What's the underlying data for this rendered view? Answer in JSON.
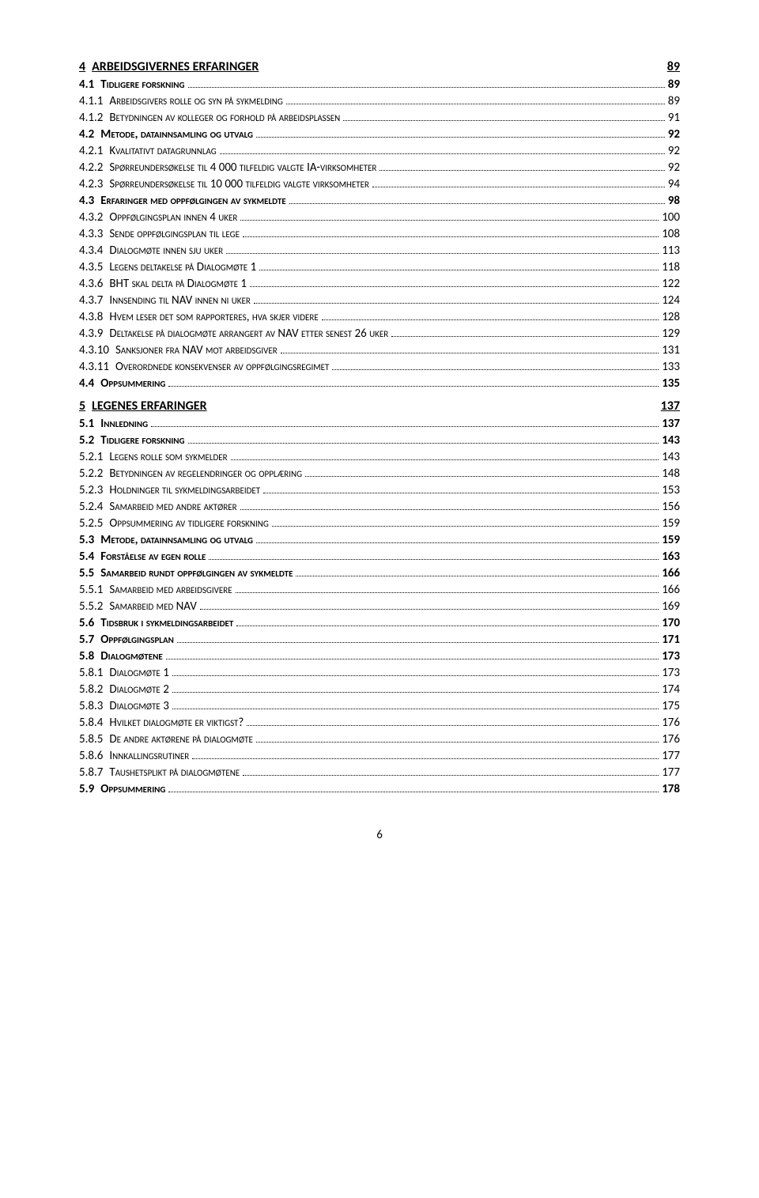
{
  "entries": [
    {
      "level": 1,
      "num": "4",
      "text": "ARBEIDSGIVERNES ERFARINGER",
      "page": "89"
    },
    {
      "level": 2,
      "num": "4.1",
      "text": "Tidligere forskning",
      "page": "89"
    },
    {
      "level": 3,
      "num": "4.1.1",
      "text": "Arbeidsgivers rolle og syn på sykmelding",
      "page": "89"
    },
    {
      "level": 3,
      "num": "4.1.2",
      "text": "Betydningen av kolleger og forhold på arbeidsplassen",
      "page": "91"
    },
    {
      "level": 2,
      "num": "4.2",
      "text": "Metode, datainnsamling og utvalg",
      "page": "92"
    },
    {
      "level": 3,
      "num": "4.2.1",
      "text": "Kvalitativt datagrunnlag",
      "page": "92"
    },
    {
      "level": 3,
      "num": "4.2.2",
      "text": "Spørreundersøkelse til 4 000 tilfeldig valgte IA-virksomheter",
      "page": "92"
    },
    {
      "level": 3,
      "num": "4.2.3",
      "text": "Spørreundersøkelse til 10 000 tilfeldig valgte virksomheter",
      "page": "94"
    },
    {
      "level": 2,
      "num": "4.3",
      "text": "Erfaringer med oppfølgingen av sykmeldte",
      "page": "98"
    },
    {
      "level": 3,
      "num": "4.3.2",
      "text": "Oppfølgingsplan innen 4 uker",
      "page": "100"
    },
    {
      "level": 3,
      "num": "4.3.3",
      "text": "Sende oppfølgingsplan til lege",
      "page": "108"
    },
    {
      "level": 3,
      "num": "4.3.4",
      "text": "Dialogmøte innen sju uker",
      "page": "113"
    },
    {
      "level": 3,
      "num": "4.3.5",
      "text": "Legens deltakelse på Dialogmøte 1",
      "page": "118"
    },
    {
      "level": 3,
      "num": "4.3.6",
      "text": "BHT skal delta på Dialogmøte 1",
      "page": "122"
    },
    {
      "level": 3,
      "num": "4.3.7",
      "text": "Innsending til NAV innen ni uker",
      "page": "124"
    },
    {
      "level": 3,
      "num": "4.3.8",
      "text": "Hvem leser det som rapporteres, hva skjer videre",
      "page": "128"
    },
    {
      "level": 3,
      "num": "4.3.9",
      "text": "Deltakelse på dialogmøte arrangert av NAV etter senest 26 uker",
      "page": "129"
    },
    {
      "level": 3,
      "num": "4.3.10",
      "text": "Sanksjoner fra NAV mot arbeidsgiver",
      "page": "131"
    },
    {
      "level": 3,
      "num": "4.3.11",
      "text": "Overordnede konsekvenser av oppfølgingsregimet",
      "page": "133"
    },
    {
      "level": 2,
      "num": "4.4",
      "text": "Oppsummering",
      "page": "135"
    },
    {
      "level": 1,
      "num": "5",
      "text": "LEGENES ERFARINGER",
      "page": "137"
    },
    {
      "level": 2,
      "num": "5.1",
      "text": "Innledning",
      "page": "137"
    },
    {
      "level": 2,
      "num": "5.2",
      "text": "Tidligere forskning",
      "page": "143"
    },
    {
      "level": 3,
      "num": "5.2.1",
      "text": "Legens rolle som sykmelder",
      "page": "143"
    },
    {
      "level": 3,
      "num": "5.2.2",
      "text": "Betydningen av regelendringer og opplæring",
      "page": "148"
    },
    {
      "level": 3,
      "num": "5.2.3",
      "text": "Holdninger til sykmeldingsarbeidet",
      "page": "153"
    },
    {
      "level": 3,
      "num": "5.2.4",
      "text": "Samarbeid med andre aktører",
      "page": "156"
    },
    {
      "level": 3,
      "num": "5.2.5",
      "text": "Oppsummering av tidligere forskning",
      "page": "159"
    },
    {
      "level": 2,
      "num": "5.3",
      "text": "Metode, datainnsamling og utvalg",
      "page": "159"
    },
    {
      "level": 2,
      "num": "5.4",
      "text": "Forståelse av egen rolle",
      "page": "163"
    },
    {
      "level": 2,
      "num": "5.5",
      "text": "Samarbeid rundt oppfølgingen av sykmeldte",
      "page": "166"
    },
    {
      "level": 3,
      "num": "5.5.1",
      "text": "Samarbeid med arbeidsgivere",
      "page": "166"
    },
    {
      "level": 3,
      "num": "5.5.2",
      "text": "Samarbeid med NAV",
      "page": "169"
    },
    {
      "level": 2,
      "num": "5.6",
      "text": "Tidsbruk i sykmeldingsarbeidet",
      "page": "170"
    },
    {
      "level": 2,
      "num": "5.7",
      "text": "Oppfølgingsplan",
      "page": "171"
    },
    {
      "level": 2,
      "num": "5.8",
      "text": "Dialogmøtene",
      "page": "173"
    },
    {
      "level": 3,
      "num": "5.8.1",
      "text": "Dialogmøte 1",
      "page": "173"
    },
    {
      "level": 3,
      "num": "5.8.2",
      "text": "Dialogmøte 2",
      "page": "174"
    },
    {
      "level": 3,
      "num": "5.8.3",
      "text": "Dialogmøte 3",
      "page": "175"
    },
    {
      "level": 3,
      "num": "5.8.4",
      "text": "Hvilket dialogmøte er viktigst?",
      "page": "176"
    },
    {
      "level": 3,
      "num": "5.8.5",
      "text": "De andre aktørene på dialogmøte",
      "page": "176"
    },
    {
      "level": 3,
      "num": "5.8.6",
      "text": "Innkallingsrutiner",
      "page": "177"
    },
    {
      "level": 3,
      "num": "5.8.7",
      "text": "Taushetsplikt på dialogmøtene",
      "page": "177"
    },
    {
      "level": 2,
      "num": "5.9",
      "text": "Oppsummering",
      "page": "178"
    }
  ],
  "pageNumber": "6"
}
